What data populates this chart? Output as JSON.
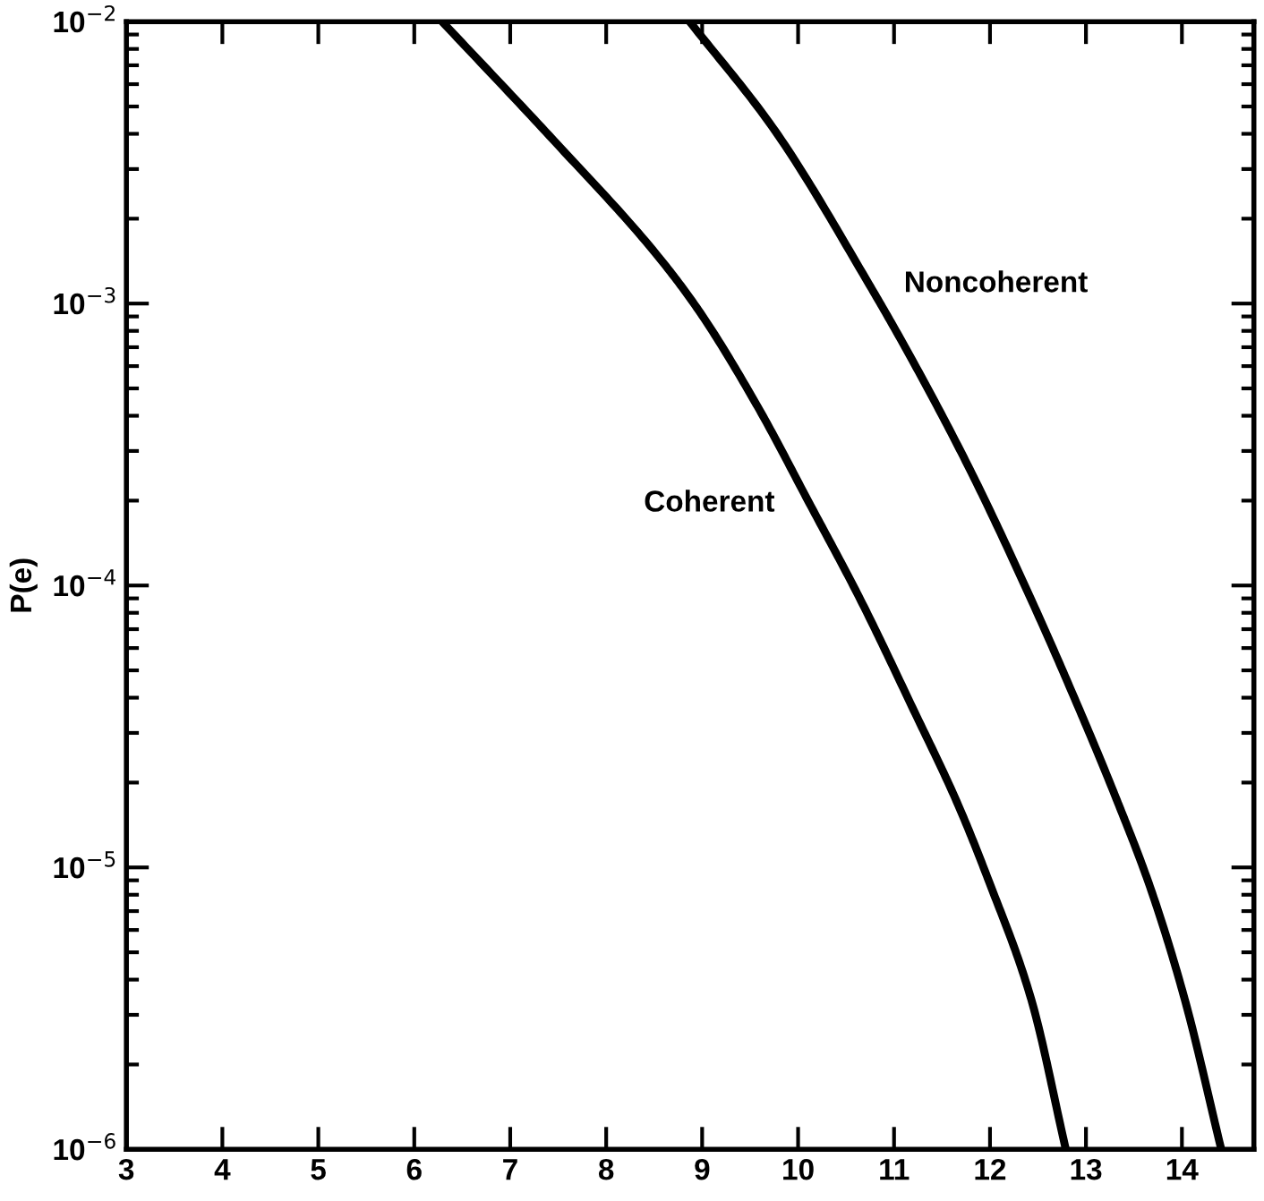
{
  "chart_data": {
    "type": "line",
    "ylabel": "P(e)",
    "log": "y",
    "grid": false,
    "marker": "none",
    "line_style": "solid",
    "xlim": [
      3,
      14.75
    ],
    "xticks": [
      3,
      4,
      5,
      6,
      7,
      8,
      9,
      10,
      11,
      12,
      13,
      14
    ],
    "ylim": [
      1e-06,
      0.01
    ],
    "yticks": [
      {
        "value": 1e-06,
        "label": "10$^{−6}$"
      },
      {
        "value": 1e-05,
        "label": "10$^{−5}$"
      },
      {
        "value": 0.0001,
        "label": "10$^{−4}$"
      },
      {
        "value": 0.001,
        "label": "10$^{−3}$"
      },
      {
        "value": 0.01,
        "label": "10$^{−2}$"
      }
    ],
    "series": [
      {
        "name": "Coherent",
        "color": "#000000",
        "x": [
          6.29,
          7.45,
          8.52,
          8.96,
          9.58,
          10.12,
          10.65,
          11.19,
          11.67,
          11.99,
          12.43,
          12.79
        ],
        "values": [
          0.01,
          0.0038,
          0.0015,
          0.00095,
          0.00043,
          0.000195,
          8.9e-05,
          3.7e-05,
          1.66e-05,
          8.9e-06,
          3.4e-06,
          1e-06
        ]
      },
      {
        "name": "Noncoherent",
        "color": "#000000",
        "x": [
          8.87,
          9.76,
          10.74,
          11.19,
          11.81,
          12.43,
          12.79,
          13.32,
          13.68,
          14.03,
          14.41
        ],
        "values": [
          0.01,
          0.0041,
          0.00117,
          0.00063,
          0.00025,
          8.9e-05,
          4.7e-05,
          1.74e-05,
          8.3e-06,
          3.4e-06,
          1e-06
        ]
      }
    ]
  }
}
